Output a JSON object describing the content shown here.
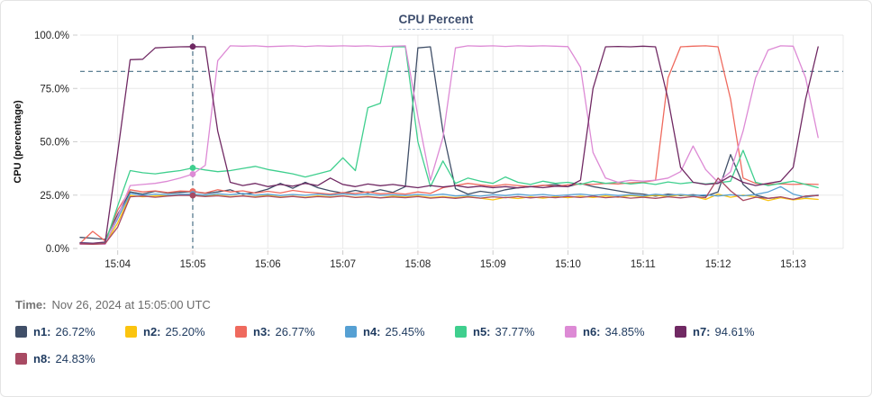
{
  "widget": {
    "title": "CPU Percent",
    "time_label": "Time:",
    "time_value": "Nov 26, 2024 at 15:05:00 UTC"
  },
  "legend": [
    {
      "name": "n1:",
      "value": "26.72%",
      "color": "#404f68"
    },
    {
      "name": "n2:",
      "value": "25.20%",
      "color": "#fbc40f"
    },
    {
      "name": "n3:",
      "value": "26.77%",
      "color": "#ef6a5e"
    },
    {
      "name": "n4:",
      "value": "25.45%",
      "color": "#56a0d3"
    },
    {
      "name": "n5:",
      "value": "37.77%",
      "color": "#3fcf8e"
    },
    {
      "name": "n6:",
      "value": "34.85%",
      "color": "#dd8ad5"
    },
    {
      "name": "n7:",
      "value": "94.61%",
      "color": "#702963"
    },
    {
      "name": "n8:",
      "value": "24.83%",
      "color": "#a84a63"
    }
  ],
  "chart_data": {
    "type": "line",
    "title": "CPU Percent",
    "xlabel": "",
    "ylabel": "CPU (percentage)",
    "ylim": [
      0,
      100
    ],
    "grid": true,
    "legend_position": "bottom",
    "yticks": [
      {
        "v": 0,
        "label": "0.0%"
      },
      {
        "v": 25,
        "label": "25.0%"
      },
      {
        "v": 50,
        "label": "50.0%"
      },
      {
        "v": 75,
        "label": "75.0%"
      },
      {
        "v": 100,
        "label": "100.0%"
      }
    ],
    "x_domain": [
      0,
      610
    ],
    "x_start_time": "15:03:30",
    "x_step_seconds": 10,
    "xticks": [
      {
        "t": 30,
        "label": "15:04"
      },
      {
        "t": 90,
        "label": "15:05"
      },
      {
        "t": 150,
        "label": "15:06"
      },
      {
        "t": 210,
        "label": "15:07"
      },
      {
        "t": 270,
        "label": "15:08"
      },
      {
        "t": 330,
        "label": "15:09"
      },
      {
        "t": 390,
        "label": "15:10"
      },
      {
        "t": 450,
        "label": "15:11"
      },
      {
        "t": 510,
        "label": "15:12"
      },
      {
        "t": 570,
        "label": "15:13"
      }
    ],
    "threshold_y": 83,
    "crosshair_t": 90,
    "crosshair_time_label": "15:05",
    "dash_color": "#4a7086",
    "grid_color": "#e8e8e8",
    "series": [
      {
        "name": "n1",
        "color": "#404f68",
        "values": [
          5.2,
          4.8,
          4.2,
          16,
          26.5,
          25.5,
          26.8,
          25.9,
          26.3,
          26.72,
          25.8,
          26.5,
          27.5,
          25.4,
          26.2,
          27.8,
          30.5,
          28.2,
          31,
          28.5,
          27,
          26,
          27.2,
          26.1,
          27.5,
          26.3,
          29,
          94,
          94.5,
          55,
          28,
          25.5,
          26.8,
          26,
          27.5,
          28.5,
          29,
          29.5,
          30,
          29,
          30.5,
          29,
          28,
          27,
          26,
          25.5,
          24.5,
          25.5,
          24.8,
          25.2,
          24.5,
          26.5,
          44,
          30,
          25,
          23.5,
          24,
          23,
          24.5,
          25
        ]
      },
      {
        "name": "n2",
        "color": "#fbc40f",
        "values": [
          2.2,
          2,
          2.1,
          12,
          24.8,
          24.2,
          24.6,
          24.9,
          25,
          25.2,
          24.6,
          24.9,
          24.3,
          24.7,
          24.2,
          24.8,
          24.1,
          24.5,
          24,
          24.6,
          24.2,
          24.7,
          24,
          24.4,
          23.8,
          24.5,
          24.1,
          24.6,
          23.9,
          24.3,
          23.8,
          24.4,
          23.6,
          22.8,
          24,
          23.4,
          24.2,
          23.6,
          24.3,
          23.8,
          24.5,
          23.9,
          24.6,
          24,
          24.8,
          24.2,
          25,
          24.3,
          25.2,
          24.5,
          23,
          25.5,
          24,
          25,
          24.2,
          22.5,
          23.8,
          22.8,
          23.5,
          23
        ]
      },
      {
        "name": "n3",
        "color": "#ef6a5e",
        "values": [
          2.5,
          8,
          3.5,
          18,
          27.5,
          26.5,
          27,
          26.2,
          26.9,
          26.77,
          26,
          27.5,
          26.5,
          27,
          26,
          26.8,
          26,
          27.2,
          26.4,
          26,
          25.5,
          26.2,
          25.8,
          26.5,
          25.6,
          26,
          25.5,
          26.5,
          25.8,
          28.5,
          29.5,
          30.5,
          29.8,
          29.2,
          30,
          29.5,
          29,
          29.6,
          29.2,
          29.8,
          30.2,
          30,
          30.5,
          30.2,
          30.8,
          31,
          32,
          80,
          94.5,
          94.8,
          95,
          94.5,
          70,
          33,
          30.5,
          30,
          30.3,
          30,
          30.2,
          30
        ]
      },
      {
        "name": "n4",
        "color": "#56a0d3",
        "values": [
          2.8,
          2.5,
          2.6,
          14,
          25.8,
          25,
          25.5,
          25.1,
          25.4,
          25.45,
          25,
          25.6,
          25.2,
          25.8,
          25,
          25.4,
          24.8,
          25.3,
          24.9,
          25.5,
          25,
          25.6,
          25.1,
          25.4,
          24.9,
          25.2,
          24.8,
          25.3,
          24.9,
          25.5,
          24.6,
          25,
          24.5,
          25.2,
          24.8,
          25.4,
          24.9,
          25.3,
          24.7,
          25.1,
          25.5,
          24.9,
          25.3,
          24.8,
          25.2,
          24.7,
          25.4,
          24.9,
          25.3,
          24.8,
          25.1,
          24.6,
          25.2,
          24.7,
          25.3,
          26.5,
          29,
          25.5,
          24,
          25
        ]
      },
      {
        "name": "n5",
        "color": "#3fcf8e",
        "values": [
          2.4,
          2.3,
          2.5,
          20,
          36.5,
          35.5,
          35,
          35.8,
          36.5,
          37.77,
          36.8,
          36,
          36.5,
          37.5,
          38.5,
          37,
          36,
          35,
          33.5,
          35,
          36.5,
          42.5,
          36.5,
          66,
          68,
          94.5,
          94.5,
          50,
          29,
          41,
          30.5,
          33,
          31.5,
          30.5,
          33.5,
          31,
          30,
          31.5,
          30.5,
          31,
          30,
          31.5,
          30.5,
          31,
          30.2,
          30.8,
          30,
          31.2,
          30.4,
          31,
          30.2,
          30.8,
          31.5,
          46,
          31,
          29.5,
          30.5,
          31.5,
          30,
          28.5
        ]
      },
      {
        "name": "n6",
        "color": "#dd8ad5",
        "values": [
          2,
          2.1,
          2,
          15,
          29.5,
          30,
          30.5,
          31.5,
          33,
          34.85,
          39,
          88,
          95,
          94.8,
          95,
          94.6,
          94.8,
          95,
          94.7,
          95,
          94.8,
          95,
          94.8,
          95,
          94.7,
          94.8,
          95,
          62,
          32,
          52,
          94,
          95,
          94.8,
          95,
          94.7,
          95,
          94.8,
          95,
          94.8,
          94.6,
          85,
          45,
          33,
          31,
          32,
          31.5,
          32,
          33,
          36,
          48,
          37,
          31,
          36,
          55,
          80,
          93,
          95,
          94.8,
          80,
          52
        ]
      },
      {
        "name": "n7",
        "color": "#702963",
        "values": [
          2.6,
          2.4,
          3,
          45,
          88.5,
          88.7,
          94,
          94.3,
          94.5,
          94.61,
          94.5,
          55,
          31,
          29.5,
          30.5,
          29,
          30,
          29.2,
          30.5,
          29.5,
          33,
          30,
          29,
          30.2,
          29.4,
          30,
          29.2,
          28.5,
          29.5,
          28.8,
          29.5,
          28.6,
          29.2,
          28.5,
          29,
          28.4,
          29,
          28.5,
          29.2,
          29,
          32,
          75,
          94.5,
          94.7,
          94.5,
          94.8,
          94.5,
          70,
          38,
          31,
          30,
          30.5,
          34,
          31,
          29.5,
          30.5,
          31.5,
          38,
          70,
          94.5
        ]
      },
      {
        "name": "n8",
        "color": "#a84a63",
        "values": [
          2.2,
          2,
          2.3,
          10,
          24.2,
          24.6,
          24,
          24.5,
          24.9,
          24.83,
          24.3,
          24.7,
          24.1,
          24.6,
          24,
          24.5,
          23.9,
          24.4,
          23.8,
          24.3,
          24,
          24.6,
          23.9,
          24.2,
          23.7,
          24.1,
          23.8,
          24.3,
          23.6,
          24,
          23.5,
          24.1,
          23.6,
          24.2,
          23.8,
          24.3,
          23.7,
          24.2,
          23.8,
          24.4,
          23.9,
          24.5,
          23.8,
          24.2,
          23.6,
          24,
          23.5,
          24.2,
          23.7,
          24.3,
          23.8,
          33,
          27,
          22.5,
          24,
          23.5,
          24.2,
          23,
          24.5,
          24.8
        ]
      }
    ]
  }
}
